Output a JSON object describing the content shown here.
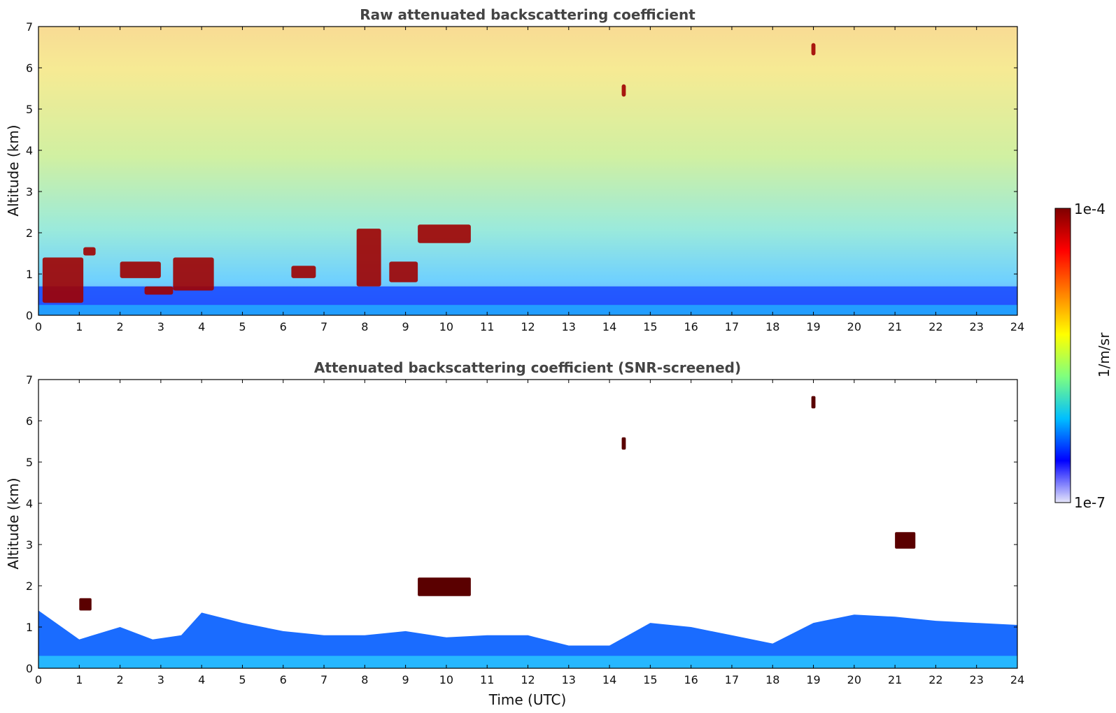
{
  "chart_data": [
    {
      "type": "heatmap",
      "title": "Raw attenuated backscattering coefficient",
      "xlabel": "",
      "ylabel": "Altitude (km)",
      "xlim": [
        0,
        24
      ],
      "ylim": [
        0,
        7
      ],
      "xticks": [
        "0",
        "1",
        "2",
        "3",
        "4",
        "5",
        "6",
        "7",
        "8",
        "9",
        "10",
        "11",
        "12",
        "13",
        "14",
        "15",
        "16",
        "17",
        "18",
        "19",
        "20",
        "21",
        "22",
        "23",
        "24"
      ],
      "yticks": [
        "0",
        "1",
        "2",
        "3",
        "4",
        "5",
        "6",
        "7"
      ],
      "grid": false,
      "features": [
        {
          "name": "aerosol boundary layer",
          "x": [
            0,
            24
          ],
          "y": [
            0,
            0.7
          ]
        },
        {
          "name": "cloud",
          "x": [
            0.1,
            1.1
          ],
          "y": [
            0.3,
            1.4
          ]
        },
        {
          "name": "cloud",
          "x": [
            1.1,
            1.4
          ],
          "y": [
            1.45,
            1.65
          ]
        },
        {
          "name": "cloud",
          "x": [
            2.0,
            3.0
          ],
          "y": [
            0.9,
            1.3
          ]
        },
        {
          "name": "cloud",
          "x": [
            2.6,
            3.3
          ],
          "y": [
            0.5,
            0.7
          ]
        },
        {
          "name": "cloud",
          "x": [
            3.3,
            4.3
          ],
          "y": [
            0.6,
            1.4
          ]
        },
        {
          "name": "cloud",
          "x": [
            6.2,
            6.8
          ],
          "y": [
            0.9,
            1.2
          ]
        },
        {
          "name": "cloud",
          "x": [
            7.8,
            8.4
          ],
          "y": [
            0.7,
            2.1
          ]
        },
        {
          "name": "cloud",
          "x": [
            8.6,
            9.3
          ],
          "y": [
            0.8,
            1.3
          ]
        },
        {
          "name": "cloud",
          "x": [
            9.3,
            10.6
          ],
          "y": [
            1.75,
            2.2
          ]
        },
        {
          "name": "cloud",
          "x": [
            14.3,
            14.4
          ],
          "y": [
            5.3,
            5.6
          ]
        },
        {
          "name": "cloud",
          "x": [
            18.95,
            19.05
          ],
          "y": [
            6.3,
            6.6
          ]
        }
      ]
    },
    {
      "type": "heatmap",
      "title": "Attenuated backscattering coefficient (SNR-screened)",
      "xlabel": "Time (UTC)",
      "ylabel": "Altitude (km)",
      "xlim": [
        0,
        24
      ],
      "ylim": [
        0,
        7
      ],
      "xticks": [
        "0",
        "1",
        "2",
        "3",
        "4",
        "5",
        "6",
        "7",
        "8",
        "9",
        "10",
        "11",
        "12",
        "13",
        "14",
        "15",
        "16",
        "17",
        "18",
        "19",
        "20",
        "21",
        "22",
        "23",
        "24"
      ],
      "yticks": [
        "0",
        "1",
        "2",
        "3",
        "4",
        "5",
        "6",
        "7"
      ],
      "grid": false,
      "layer_top_km": [
        {
          "x": 0,
          "y": 1.4
        },
        {
          "x": 1,
          "y": 0.7
        },
        {
          "x": 2,
          "y": 1.0
        },
        {
          "x": 2.8,
          "y": 0.7
        },
        {
          "x": 3.5,
          "y": 0.8
        },
        {
          "x": 4,
          "y": 1.35
        },
        {
          "x": 5,
          "y": 1.1
        },
        {
          "x": 6,
          "y": 0.9
        },
        {
          "x": 7,
          "y": 0.8
        },
        {
          "x": 8,
          "y": 0.8
        },
        {
          "x": 9,
          "y": 0.9
        },
        {
          "x": 10,
          "y": 0.75
        },
        {
          "x": 11,
          "y": 0.8
        },
        {
          "x": 12,
          "y": 0.8
        },
        {
          "x": 13,
          "y": 0.55
        },
        {
          "x": 14,
          "y": 0.55
        },
        {
          "x": 15,
          "y": 1.1
        },
        {
          "x": 16,
          "y": 1.0
        },
        {
          "x": 17,
          "y": 0.8
        },
        {
          "x": 18,
          "y": 0.6
        },
        {
          "x": 19,
          "y": 1.1
        },
        {
          "x": 20,
          "y": 1.3
        },
        {
          "x": 21,
          "y": 1.25
        },
        {
          "x": 22,
          "y": 1.15
        },
        {
          "x": 23,
          "y": 1.1
        },
        {
          "x": 24,
          "y": 1.05
        }
      ],
      "features": [
        {
          "name": "cloud",
          "x": [
            9.3,
            10.6
          ],
          "y": [
            1.75,
            2.2
          ]
        },
        {
          "name": "cloud",
          "x": [
            1.0,
            1.3
          ],
          "y": [
            1.4,
            1.7
          ]
        },
        {
          "name": "cloud",
          "x": [
            14.3,
            14.4
          ],
          "y": [
            5.3,
            5.6
          ]
        },
        {
          "name": "cloud",
          "x": [
            18.95,
            19.05
          ],
          "y": [
            6.3,
            6.6
          ]
        },
        {
          "name": "cloud",
          "x": [
            21.0,
            21.5
          ],
          "y": [
            2.9,
            3.3
          ]
        }
      ]
    }
  ],
  "colorbar": {
    "label": "1/m/sr",
    "max_label": "1e-4",
    "min_label": "1e-7",
    "scale": "log",
    "colors": [
      "#e6e6fa",
      "#0000ff",
      "#00bfff",
      "#7fff7f",
      "#ffff00",
      "#ff7f00",
      "#ff0000",
      "#7f0000"
    ]
  }
}
